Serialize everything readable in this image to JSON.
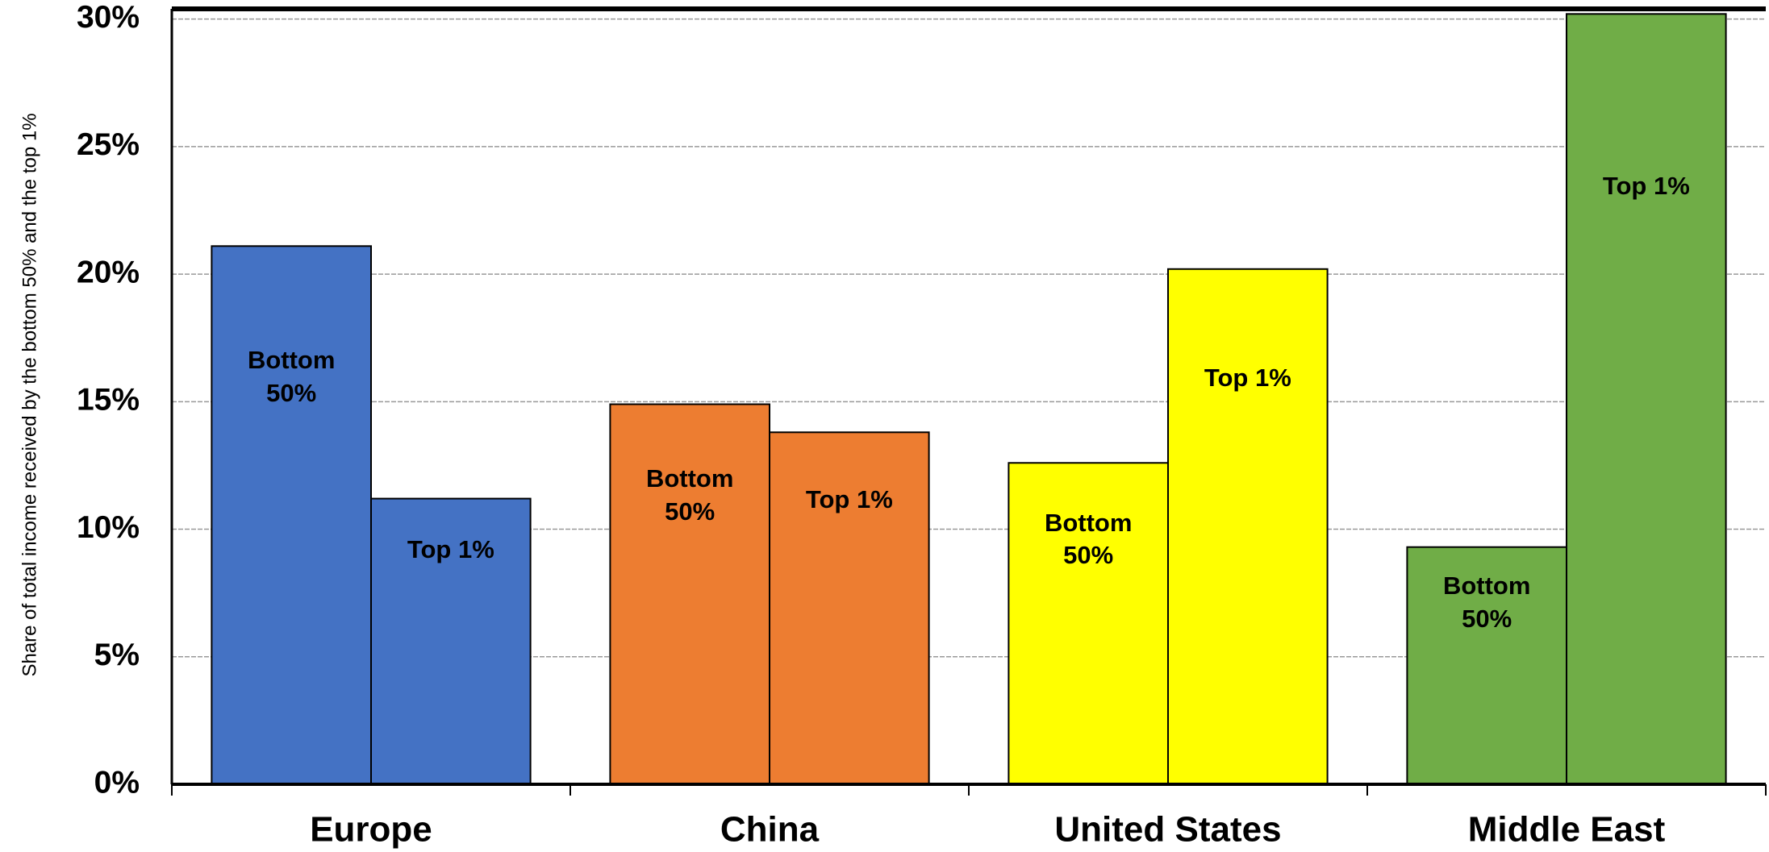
{
  "chart_data": {
    "type": "bar",
    "y_label": "Share of total income received by the bottom 50% and the top 1%",
    "categories": [
      "Europe",
      "China",
      "United States",
      "Middle East"
    ],
    "colors": [
      "#4472c4",
      "#ed7d31",
      "#ffff00",
      "#70ad47"
    ],
    "series": [
      {
        "name": "Bottom 50%",
        "values": [
          21.1,
          14.9,
          12.6,
          9.3
        ]
      },
      {
        "name": "Top 1%",
        "values": [
          11.2,
          13.8,
          20.2,
          30.2
        ]
      }
    ],
    "ylim": [
      0,
      30.4
    ],
    "yticks": [
      {
        "value": 0,
        "label": "0%"
      },
      {
        "value": 5,
        "label": "5%"
      },
      {
        "value": 10,
        "label": "10%"
      },
      {
        "value": 15,
        "label": "15%"
      },
      {
        "value": 20,
        "label": "20%"
      },
      {
        "value": 25,
        "label": "25%"
      },
      {
        "value": 30,
        "label": "30%"
      }
    ],
    "grid": true
  }
}
